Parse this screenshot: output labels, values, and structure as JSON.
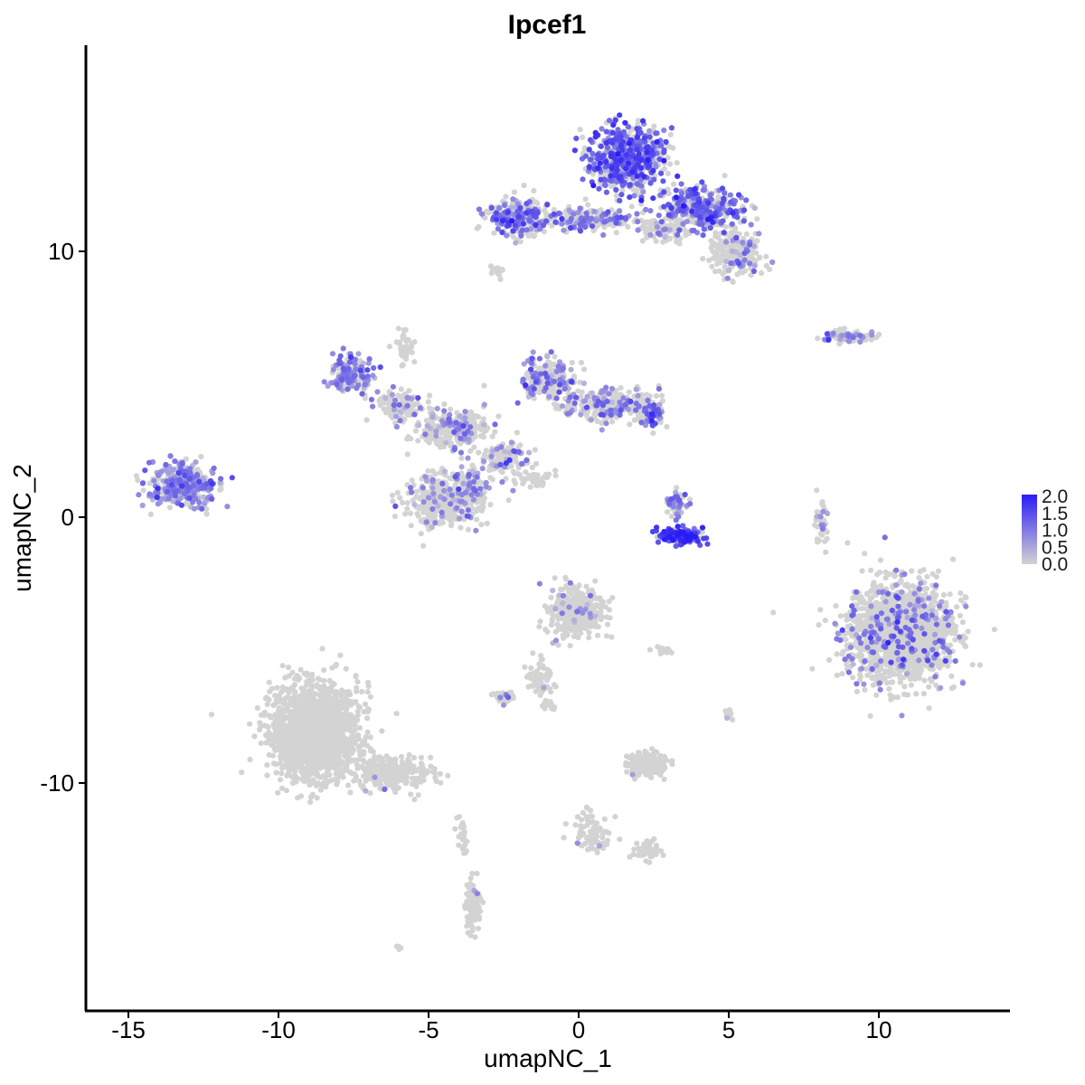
{
  "chart_data": {
    "type": "scatter",
    "title": "Ipcef1",
    "xlabel": "umapNC_1",
    "ylabel": "umapNC_2",
    "xlim": [
      -16.5,
      14.5
    ],
    "ylim": [
      -18.5,
      17.5
    ],
    "x_ticks": [
      -15,
      -10,
      -5,
      0,
      5,
      10
    ],
    "x_tick_labels": [
      "-15",
      "-10",
      "-5",
      "0",
      "5",
      "10"
    ],
    "y_ticks": [
      10,
      0,
      -10
    ],
    "y_tick_labels": [
      "10",
      "0",
      "-10"
    ],
    "grid": false,
    "legend_position": "right",
    "color_scale": {
      "low_color": "#d3d3d3",
      "high_color": "#2a1cf5",
      "min": 0.0,
      "max": 2.0,
      "tick_values": [
        0.0,
        0.5,
        1.0,
        1.5,
        2.0
      ],
      "tick_labels": [
        "0.0",
        "0.5",
        "1.0",
        "1.5",
        "2.0"
      ]
    },
    "clusters": [
      {
        "cx": 1.6,
        "cy": 13.5,
        "sx": 1.1,
        "sy": 1.1,
        "n": 700,
        "expr_frac": 0.55,
        "expr_mean": 1.2
      },
      {
        "cx": 4.0,
        "cy": 11.6,
        "sx": 1.3,
        "sy": 0.7,
        "n": 380,
        "expr_frac": 0.5,
        "expr_mean": 1.1
      },
      {
        "cx": 5.3,
        "cy": 9.9,
        "sx": 0.8,
        "sy": 0.8,
        "n": 220,
        "expr_frac": 0.2,
        "expr_mean": 0.8
      },
      {
        "cx": -2.0,
        "cy": 11.3,
        "sx": 0.9,
        "sy": 0.6,
        "n": 260,
        "expr_frac": 0.45,
        "expr_mean": 1.0
      },
      {
        "cx": 0.4,
        "cy": 11.2,
        "sx": 1.2,
        "sy": 0.35,
        "n": 200,
        "expr_frac": 0.35,
        "expr_mean": 0.9
      },
      {
        "cx": 2.8,
        "cy": 10.8,
        "sx": 0.7,
        "sy": 0.4,
        "n": 90,
        "expr_frac": 0.1,
        "expr_mean": 0.6
      },
      {
        "cx": -2.7,
        "cy": 9.2,
        "sx": 0.2,
        "sy": 0.2,
        "n": 15,
        "expr_frac": 0.0,
        "expr_mean": 0.0
      },
      {
        "cx": 9.0,
        "cy": 6.8,
        "sx": 0.8,
        "sy": 0.2,
        "n": 90,
        "expr_frac": 0.25,
        "expr_mean": 0.8
      },
      {
        "cx": -7.6,
        "cy": 5.4,
        "sx": 0.6,
        "sy": 0.6,
        "n": 170,
        "expr_frac": 0.55,
        "expr_mean": 0.8
      },
      {
        "cx": -6.0,
        "cy": 4.2,
        "sx": 0.8,
        "sy": 0.5,
        "n": 120,
        "expr_frac": 0.2,
        "expr_mean": 0.7
      },
      {
        "cx": -4.2,
        "cy": 3.3,
        "sx": 1.0,
        "sy": 0.7,
        "n": 260,
        "expr_frac": 0.2,
        "expr_mean": 0.7
      },
      {
        "cx": -1.0,
        "cy": 5.2,
        "sx": 0.8,
        "sy": 0.8,
        "n": 230,
        "expr_frac": 0.3,
        "expr_mean": 0.8
      },
      {
        "cx": 1.0,
        "cy": 4.2,
        "sx": 1.2,
        "sy": 0.5,
        "n": 250,
        "expr_frac": 0.22,
        "expr_mean": 0.8
      },
      {
        "cx": 2.4,
        "cy": 4.0,
        "sx": 0.5,
        "sy": 0.6,
        "n": 110,
        "expr_frac": 0.3,
        "expr_mean": 1.0
      },
      {
        "cx": -2.5,
        "cy": 2.2,
        "sx": 0.8,
        "sy": 0.6,
        "n": 120,
        "expr_frac": 0.25,
        "expr_mean": 0.8
      },
      {
        "cx": -4.5,
        "cy": 0.6,
        "sx": 1.1,
        "sy": 0.9,
        "n": 380,
        "expr_frac": 0.15,
        "expr_mean": 0.7
      },
      {
        "cx": -3.6,
        "cy": 1.0,
        "sx": 0.5,
        "sy": 0.9,
        "n": 90,
        "expr_frac": 0.4,
        "expr_mean": 0.8
      },
      {
        "cx": -13.2,
        "cy": 1.2,
        "sx": 1.0,
        "sy": 0.7,
        "n": 360,
        "expr_frac": 0.6,
        "expr_mean": 0.8
      },
      {
        "cx": -5.8,
        "cy": 6.3,
        "sx": 0.3,
        "sy": 0.6,
        "n": 40,
        "expr_frac": 0.0,
        "expr_mean": 0.0
      },
      {
        "cx": -1.6,
        "cy": 1.4,
        "sx": 0.6,
        "sy": 0.3,
        "n": 40,
        "expr_frac": 0.0,
        "expr_mean": 0.0
      },
      {
        "cx": 3.4,
        "cy": -0.7,
        "sx": 0.7,
        "sy": 0.25,
        "n": 170,
        "expr_frac": 0.8,
        "expr_mean": 1.5
      },
      {
        "cx": 3.3,
        "cy": 0.5,
        "sx": 0.3,
        "sy": 0.5,
        "n": 50,
        "expr_frac": 0.5,
        "expr_mean": 0.8
      },
      {
        "cx": 10.7,
        "cy": -4.3,
        "sx": 1.6,
        "sy": 1.7,
        "n": 1500,
        "expr_frac": 0.12,
        "expr_mean": 0.9
      },
      {
        "cx": 8.1,
        "cy": -0.3,
        "sx": 0.2,
        "sy": 0.8,
        "n": 40,
        "expr_frac": 0.1,
        "expr_mean": 0.6
      },
      {
        "cx": -8.8,
        "cy": -8.1,
        "sx": 1.3,
        "sy": 1.6,
        "n": 1600,
        "expr_frac": 0.0,
        "expr_mean": 0.0
      },
      {
        "cx": -6.2,
        "cy": -9.6,
        "sx": 1.2,
        "sy": 0.6,
        "n": 250,
        "expr_frac": 0.005,
        "expr_mean": 0.6
      },
      {
        "cx": -3.5,
        "cy": -14.6,
        "sx": 0.25,
        "sy": 0.8,
        "n": 100,
        "expr_frac": 0.02,
        "expr_mean": 0.6
      },
      {
        "cx": -3.9,
        "cy": -12.0,
        "sx": 0.2,
        "sy": 0.8,
        "n": 25,
        "expr_frac": 0.0,
        "expr_mean": 0.0
      },
      {
        "cx": -0.1,
        "cy": -3.6,
        "sx": 0.8,
        "sy": 0.8,
        "n": 380,
        "expr_frac": 0.05,
        "expr_mean": 0.7
      },
      {
        "cx": -1.3,
        "cy": -6.1,
        "sx": 0.4,
        "sy": 0.7,
        "n": 60,
        "expr_frac": 0.03,
        "expr_mean": 0.6
      },
      {
        "cx": -2.5,
        "cy": -6.8,
        "sx": 0.3,
        "sy": 0.2,
        "n": 50,
        "expr_frac": 0.05,
        "expr_mean": 0.6
      },
      {
        "cx": 2.3,
        "cy": -9.3,
        "sx": 0.6,
        "sy": 0.4,
        "n": 160,
        "expr_frac": 0.03,
        "expr_mean": 0.6
      },
      {
        "cx": 0.4,
        "cy": -11.8,
        "sx": 0.6,
        "sy": 0.7,
        "n": 80,
        "expr_frac": 0.02,
        "expr_mean": 0.6
      },
      {
        "cx": 2.3,
        "cy": -12.5,
        "sx": 0.5,
        "sy": 0.3,
        "n": 60,
        "expr_frac": 0.0,
        "expr_mean": 0.0
      },
      {
        "cx": -1.0,
        "cy": -7.1,
        "sx": 0.2,
        "sy": 0.15,
        "n": 15,
        "expr_frac": 0.0,
        "expr_mean": 0.0
      },
      {
        "cx": 2.8,
        "cy": -5.0,
        "sx": 0.4,
        "sy": 0.1,
        "n": 15,
        "expr_frac": 0.0,
        "expr_mean": 0.0
      },
      {
        "cx": 5.0,
        "cy": -7.3,
        "sx": 0.15,
        "sy": 0.25,
        "n": 12,
        "expr_frac": 0.1,
        "expr_mean": 0.6
      },
      {
        "cx": -6.0,
        "cy": -16.2,
        "sx": 0.1,
        "sy": 0.1,
        "n": 6,
        "expr_frac": 0.0,
        "expr_mean": 0.0
      }
    ]
  }
}
